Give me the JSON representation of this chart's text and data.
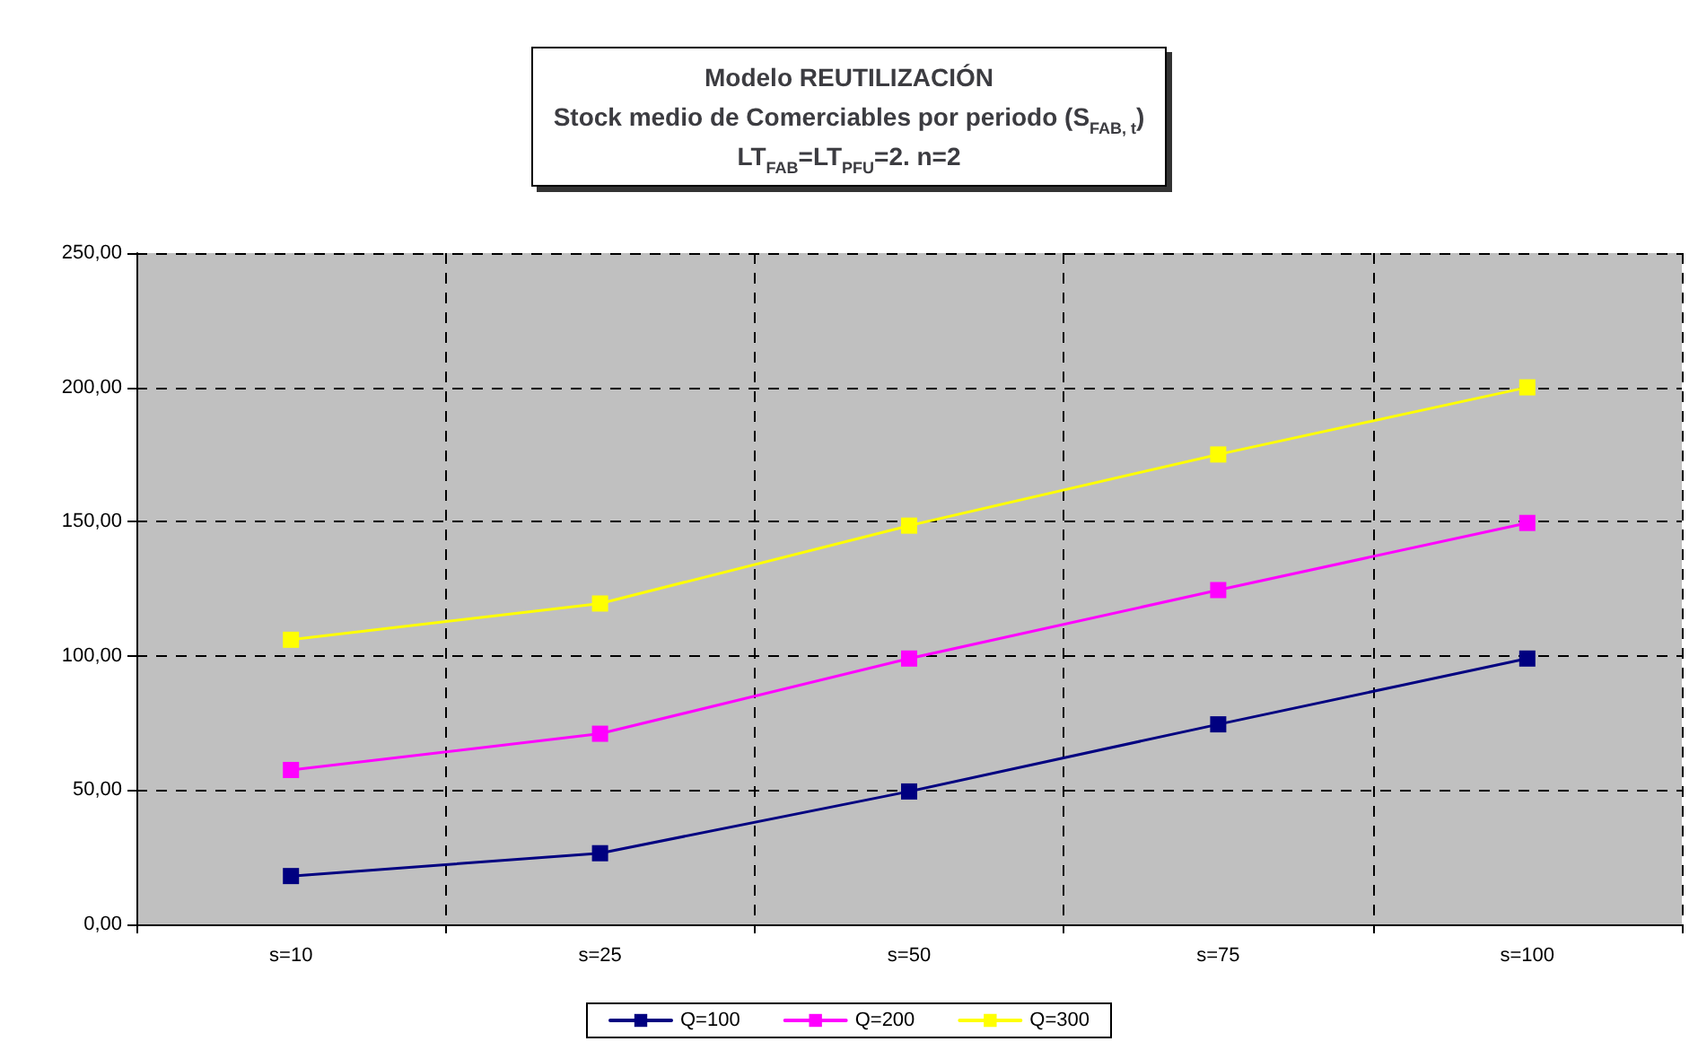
{
  "chart_data": {
    "type": "line",
    "title": "Modelo REUTILIZACIÓN\nStock medio de Comerciables por periodo (S$_{FAB, t}$)\nLT$_{FAB}$=LT$_{PFU}$=2. n=2",
    "categories": [
      "s=10",
      "s=25",
      "s=50",
      "s=75",
      "s=100"
    ],
    "series": [
      {
        "name": "Q=100",
        "color": "#000080",
        "values": [
          18,
          26.5,
          49.5,
          74.5,
          99
        ]
      },
      {
        "name": "Q=200",
        "color": "#ff00ff",
        "values": [
          57.5,
          71,
          99,
          124.5,
          149.5
        ]
      },
      {
        "name": "Q=300",
        "color": "#ffff00",
        "values": [
          106,
          119.5,
          148.5,
          175,
          200
        ]
      }
    ],
    "ylim": [
      0,
      250
    ],
    "yticks": [
      {
        "value": 0,
        "label": "0,00"
      },
      {
        "value": 50,
        "label": "50,00"
      },
      {
        "value": 100,
        "label": "100,00"
      },
      {
        "value": 150,
        "label": "150,00"
      },
      {
        "value": 200,
        "label": "200,00"
      },
      {
        "value": 250,
        "label": "250,00"
      }
    ],
    "grid": true,
    "legend": "bottom",
    "marker": "square",
    "line_style": "solid"
  }
}
